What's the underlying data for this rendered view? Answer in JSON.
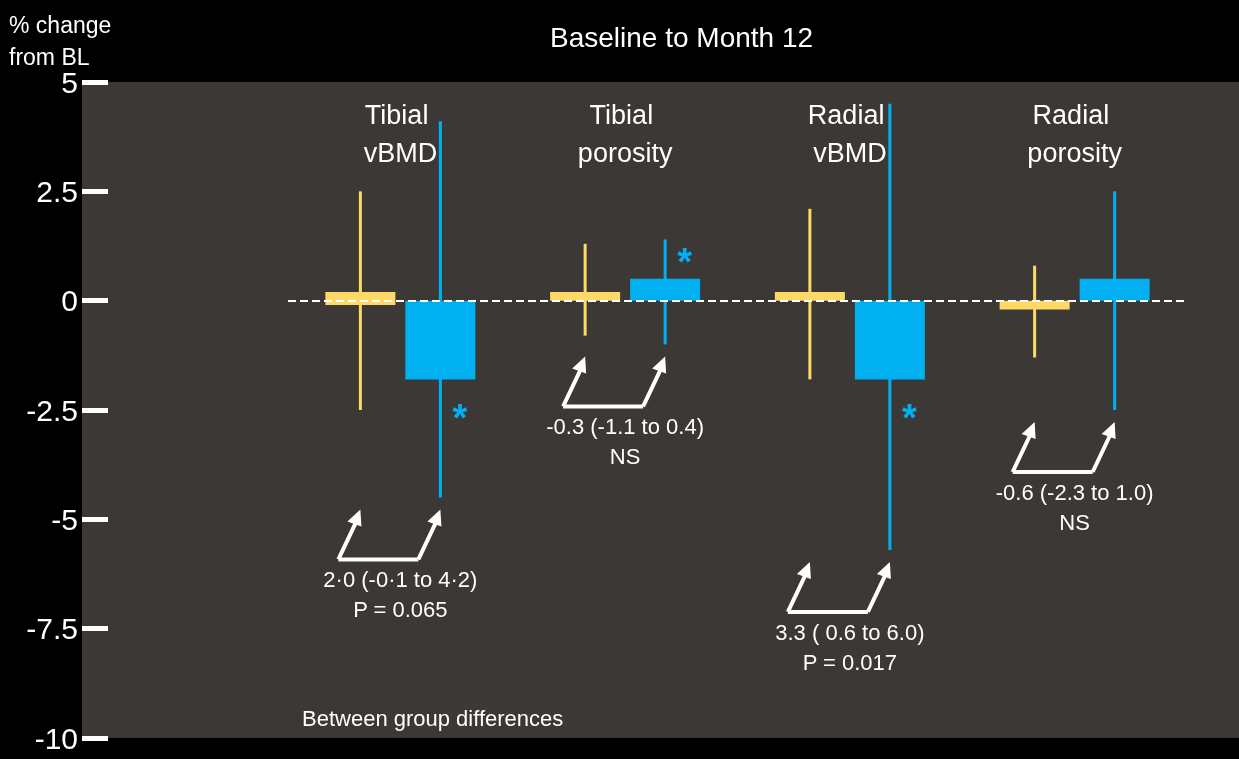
{
  "chart_data": {
    "type": "bar",
    "title": "Baseline to Month 12",
    "ylabel": "% change from BL",
    "categories": [
      "Tibial vBMD",
      "Tibial porosity",
      "Radial vBMD",
      "Radial porosity"
    ],
    "series": [
      {
        "color": "#ffd966",
        "base": [
          -0.1,
          0,
          0,
          -0.2
        ],
        "values": [
          0.3,
          0.2,
          0.2,
          0.2
        ],
        "errors": [
          [
            -2.5,
            2.5
          ],
          [
            -0.8,
            1.3
          ],
          [
            -1.8,
            2.1
          ],
          [
            -1.3,
            0.8
          ]
        ]
      },
      {
        "color": "#00b0f0",
        "values": [
          -1.8,
          0.5,
          -1.8,
          0.5
        ],
        "errors": [
          [
            -4.5,
            4.1
          ],
          [
            -1.0,
            1.4
          ],
          [
            -5.7,
            4.5
          ],
          [
            -2.5,
            2.5
          ]
        ]
      }
    ],
    "ylim": [
      -10,
      5
    ],
    "yticks": [
      -10,
      -7.5,
      -5,
      -2.5,
      0,
      2.5,
      5
    ],
    "ref_lines": [
      {
        "axis": "y",
        "value": 0,
        "color": "#ffffff",
        "line_style": "dashed"
      }
    ],
    "annotations": [
      "2·0 (-0·1 to 4·2)\nP = 0.065",
      "-0.3 (-1.1 to 0.4)\nNS",
      "3.3 ( 0.6 to 6.0)\nP = 0.017",
      "-0.6 (-2.3 to 1.0)\nNS",
      "Between group differences",
      "*",
      "*",
      "*"
    ]
  }
}
